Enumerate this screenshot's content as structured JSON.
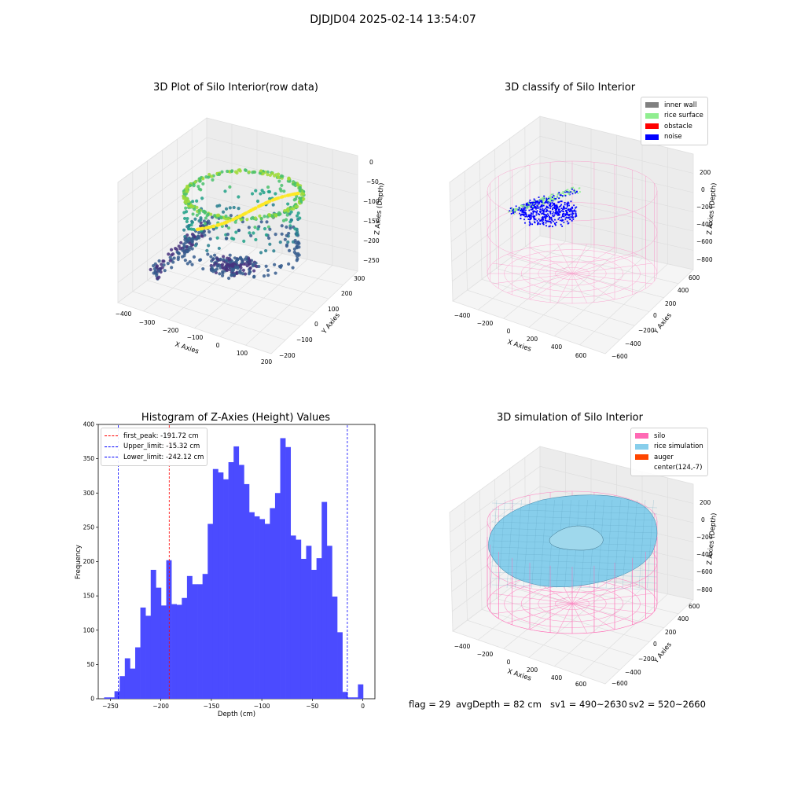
{
  "figure": {
    "suptitle": "DJDJD04 2025-02-14 13:54:07",
    "footer": {
      "flag": "flag = 29",
      "avg_depth": "avgDepth = 82 cm",
      "sv1": "sv1 = 490~2630",
      "sv2": "sv2 = 520~2660"
    }
  },
  "colors": {
    "inner_wall": "#808080",
    "rice_surface": "#90ee90",
    "obstacle": "#ff0000",
    "noise": "#0000ff",
    "silo": "#ff69b4",
    "rice_simulation": "#87ceeb",
    "auger": "#ff4500",
    "histogram_bar": "#4b4bff",
    "first_peak_line": "#ff0000",
    "limit_line": "#0000ff"
  },
  "panels": {
    "raw": {
      "title": "3D Plot of Silo Interior(row data)",
      "xlabel": "X Axies",
      "ylabel": "Y Axies",
      "zlabel": "Z Axies (Depth)",
      "xticks": [
        "−400",
        "−300",
        "−200",
        "−100",
        "0",
        "100",
        "200"
      ],
      "yticks": [
        "−200",
        "−100",
        "0",
        "100",
        "200",
        "300"
      ],
      "zticks": [
        "0",
        "−50",
        "−100",
        "−150",
        "−200",
        "−250"
      ]
    },
    "classify": {
      "title": "3D classify of Silo Interior",
      "xlabel": "X Axies",
      "ylabel": "Y Axies",
      "zlabel": "Z Axies (Depth)",
      "xticks": [
        "−400",
        "−200",
        "0",
        "200",
        "400",
        "600"
      ],
      "yticks": [
        "−600",
        "−400",
        "−200",
        "0",
        "200",
        "400",
        "600"
      ],
      "zticks": [
        "200",
        "0",
        "−200",
        "−400",
        "−600",
        "−800"
      ],
      "legend": [
        "inner wall",
        "rice surface",
        "obstacle",
        "noise"
      ]
    },
    "simulation": {
      "title": "3D simulation of Silo Interior",
      "xlabel": "X Axies",
      "ylabel": "Y Axies",
      "zlabel": "Z Axies (Depth)",
      "xticks": [
        "−400",
        "−200",
        "0",
        "200",
        "400",
        "600"
      ],
      "yticks": [
        "−600",
        "−400",
        "−200",
        "0",
        "200",
        "400",
        "600"
      ],
      "zticks": [
        "200",
        "0",
        "−200",
        "−400",
        "−600",
        "−800"
      ],
      "legend": [
        "silo",
        "rice simulation",
        "auger",
        "center(124,-7)"
      ]
    }
  },
  "chart_data": [
    {
      "type": "scatter",
      "title": "3D Plot of Silo Interior(row data)",
      "xlabel": "X Axies",
      "ylabel": "Y Axies",
      "zlabel": "Z Axies (Depth)",
      "xlim": [
        -420,
        210
      ],
      "ylim": [
        -230,
        310
      ],
      "zlim": [
        -270,
        5
      ]
    },
    {
      "type": "scatter",
      "title": "3D classify of Silo Interior",
      "xlabel": "X Axies",
      "ylabel": "Y Axies",
      "zlabel": "Z Axies (Depth)",
      "series": [
        {
          "name": "inner wall"
        },
        {
          "name": "rice surface"
        },
        {
          "name": "obstacle"
        },
        {
          "name": "noise"
        }
      ]
    },
    {
      "type": "bar",
      "title": "Histogram of Z-Axies (Height) Values",
      "xlabel": "Depth (cm)",
      "ylabel": "Frequency",
      "xlim": [
        -262,
        12
      ],
      "ylim": [
        0,
        400
      ],
      "xticks": [
        -250,
        -200,
        -150,
        -100,
        -50,
        0
      ],
      "yticks": [
        0,
        50,
        100,
        150,
        200,
        250,
        300,
        350,
        400
      ],
      "bin_start": -256.2,
      "bin_width": 5.13,
      "values": [
        2,
        2,
        11,
        33,
        59,
        44,
        75,
        133,
        121,
        188,
        162,
        136,
        202,
        138,
        137,
        147,
        179,
        167,
        167,
        182,
        255,
        335,
        330,
        320,
        345,
        368,
        341,
        313,
        272,
        266,
        262,
        255,
        278,
        300,
        380,
        367,
        238,
        232,
        204,
        223,
        188,
        205,
        287,
        223,
        149,
        97,
        10,
        2,
        2,
        21
      ],
      "lines": [
        {
          "label": "first_peak: -191.72 cm",
          "x": -191.72,
          "color": "#ff0000"
        },
        {
          "label": "Upper_limit: -15.32 cm",
          "x": -15.32,
          "color": "#0000ff"
        },
        {
          "label": "Lower_limit: -242.12 cm",
          "x": -242.12,
          "color": "#0000ff"
        }
      ]
    },
    {
      "type": "area",
      "title": "3D simulation of Silo Interior",
      "xlabel": "X Axies",
      "ylabel": "Y Axies",
      "zlabel": "Z Axies (Depth)",
      "series": [
        {
          "name": "silo"
        },
        {
          "name": "rice simulation"
        },
        {
          "name": "auger"
        },
        {
          "name": "center(124,-7)"
        }
      ]
    }
  ]
}
